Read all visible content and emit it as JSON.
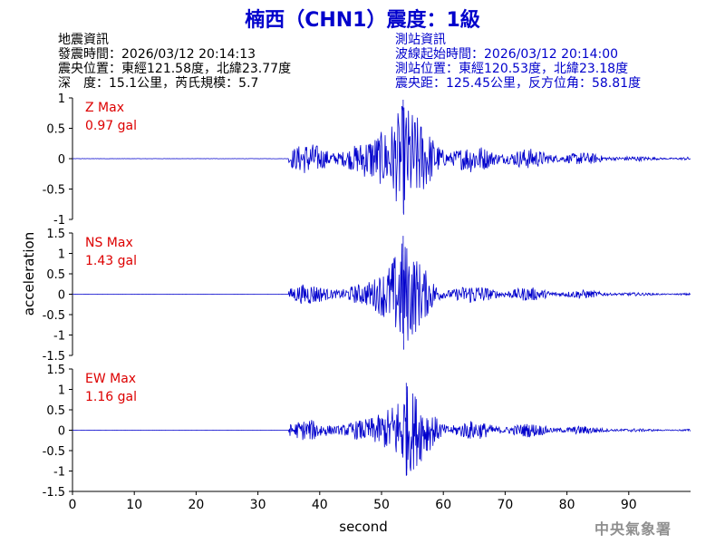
{
  "header": {
    "title": "楠西（CHN1）震度：1級",
    "quake_info": {
      "heading": "地震資訊",
      "time": "發震時間：2026/03/12 20:14:13",
      "epicenter": "震央位置：東經121.58度，北緯23.77度",
      "depth_mag": "深　度：15.1公里，芮氏規模：5.7"
    },
    "station_info": {
      "heading": "測站資訊",
      "start_time": "波線起始時間：2026/03/12 20:14:00",
      "location": "測站位置：東經120.53度，北緯23.18度",
      "distance": "震央距：125.45公里，反方位角：58.81度"
    }
  },
  "watermark": "中央氣象署",
  "chart_data": {
    "type": "line",
    "xlabel": "second",
    "ylabel": "acceleration",
    "xlim": [
      0,
      100
    ],
    "x_ticks": [
      "0",
      "10",
      "20",
      "30",
      "40",
      "50",
      "60",
      "70",
      "80",
      "90"
    ],
    "line_color": "#0000cc",
    "label_color": "#dd0000",
    "grid": false,
    "p_arrival_s": 35,
    "panels": [
      {
        "name_label": "Z Max",
        "max_label": "0.97 gal",
        "peak_abs": 0.97,
        "ylim": [
          -1,
          1
        ],
        "yticks": [
          "1",
          "0.5",
          "0",
          "-0.5",
          "-1"
        ],
        "ytick_values": [
          1,
          0.5,
          0,
          -0.5,
          -1
        ],
        "peak_window_s": [
          50,
          57
        ]
      },
      {
        "name_label": "NS Max",
        "max_label": "1.43 gal",
        "peak_abs": 1.43,
        "ylim": [
          -1.5,
          1.5
        ],
        "yticks": [
          "1.5",
          "1",
          "0.5",
          "0",
          "-0.5",
          "-1",
          "-1.5"
        ],
        "ytick_values": [
          1.5,
          1,
          0.5,
          0,
          -0.5,
          -1,
          -1.5
        ],
        "peak_window_s": [
          51,
          56
        ]
      },
      {
        "name_label": "EW Max",
        "max_label": "1.16 gal",
        "peak_abs": 1.16,
        "ylim": [
          -1.5,
          1.5
        ],
        "yticks": [
          "1.5",
          "1",
          "0.5",
          "0",
          "-0.5",
          "-1",
          "-1.5"
        ],
        "ytick_values": [
          1.5,
          1,
          0.5,
          0,
          -0.5,
          -1,
          -1.5
        ],
        "peak_window_s": [
          51,
          57
        ]
      }
    ]
  }
}
